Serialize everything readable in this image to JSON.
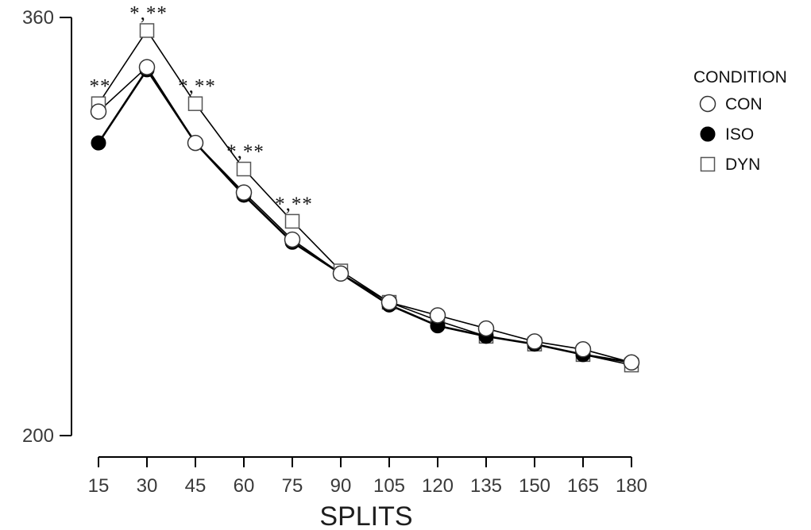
{
  "chart_data": {
    "type": "line",
    "xlabel": "SPLITS",
    "ylabel": "",
    "title": "",
    "x": [
      15,
      30,
      45,
      60,
      75,
      90,
      105,
      120,
      135,
      150,
      165,
      180
    ],
    "ylim": [
      200,
      360
    ],
    "yticks": [
      "200",
      "360"
    ],
    "grid": false,
    "legend": {
      "title": "CONDITION",
      "position": "right"
    },
    "series": [
      {
        "name": "CON",
        "marker": "circle-open",
        "values": [
          324,
          341,
          312,
          293,
          275,
          262,
          251,
          246,
          241,
          236,
          233,
          228
        ]
      },
      {
        "name": "ISO",
        "marker": "circle-filled",
        "values": [
          312,
          340,
          312,
          292,
          274,
          262,
          250,
          242,
          238,
          235,
          231,
          228
        ]
      },
      {
        "name": "DYN",
        "marker": "square-open",
        "values": [
          327,
          355,
          327,
          302,
          282,
          263,
          251,
          244,
          238,
          235,
          231,
          227
        ]
      }
    ],
    "annotations": [
      {
        "x": 15,
        "text": "**",
        "above_value": 327
      },
      {
        "x": 30,
        "text": "*,**",
        "above_value": 355
      },
      {
        "x": 45,
        "text": "*,**",
        "above_value": 327
      },
      {
        "x": 60,
        "text": "*,**",
        "above_value": 302
      },
      {
        "x": 75,
        "text": "*,**",
        "above_value": 282
      }
    ]
  }
}
